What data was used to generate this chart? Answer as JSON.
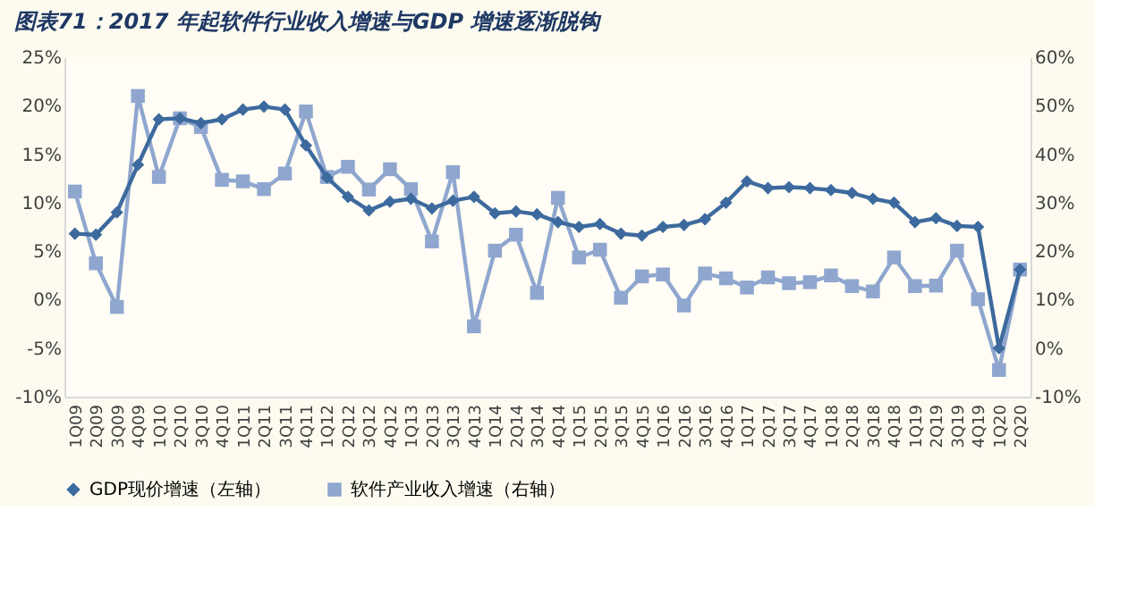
{
  "chart_data": {
    "type": "line",
    "title": "图表71：2017 年起软件行业收入增速与GDP 增速逐渐脱钩",
    "categories": [
      "1Q09",
      "2Q09",
      "3Q09",
      "4Q09",
      "1Q10",
      "2Q10",
      "3Q10",
      "4Q10",
      "1Q11",
      "2Q11",
      "3Q11",
      "4Q11",
      "1Q12",
      "2Q12",
      "3Q12",
      "4Q12",
      "1Q13",
      "2Q13",
      "3Q13",
      "4Q13",
      "1Q14",
      "2Q14",
      "3Q14",
      "4Q14",
      "1Q15",
      "2Q15",
      "3Q15",
      "4Q15",
      "1Q16",
      "2Q16",
      "3Q16",
      "4Q16",
      "1Q17",
      "2Q17",
      "3Q17",
      "4Q17",
      "1Q18",
      "2Q18",
      "3Q18",
      "4Q18",
      "1Q19",
      "2Q19",
      "3Q19",
      "4Q19",
      "1Q20",
      "2Q20"
    ],
    "series": [
      {
        "name": "GDP现价增速（左轴）",
        "color": "#3d6a9e",
        "marker": "diamond",
        "values": [
          6.8,
          6.7,
          9.0,
          13.9,
          18.6,
          18.7,
          18.2,
          18.6,
          19.6,
          19.9,
          19.6,
          15.9,
          12.6,
          10.6,
          9.2,
          10.1,
          10.4,
          9.4,
          10.2,
          10.6,
          8.9,
          9.1,
          8.8,
          8.0,
          7.5,
          7.8,
          6.8,
          6.6,
          7.5,
          7.7,
          8.3,
          10.0,
          12.2,
          11.5,
          11.6,
          11.5,
          11.3,
          11.0,
          10.4,
          10.0,
          8.0,
          8.4,
          7.6,
          7.5,
          -5.0,
          3.1
        ]
      },
      {
        "name": "软件产业收入增速（右轴）",
        "color": "#8fa6cf",
        "marker": "square",
        "axis": "y2",
        "values": [
          32.3,
          17.5,
          8.5,
          52.0,
          35.3,
          47.4,
          45.6,
          34.7,
          34.4,
          32.8,
          36.0,
          48.8,
          35.3,
          37.4,
          32.7,
          36.9,
          32.8,
          22.0,
          36.3,
          4.5,
          20.1,
          23.4,
          11.4,
          31.0,
          18.7,
          20.3,
          10.4,
          14.8,
          15.2,
          8.8,
          15.4,
          14.4,
          12.5,
          14.6,
          13.4,
          13.6,
          15.0,
          12.8,
          11.7,
          18.7,
          12.8,
          12.9,
          20.1,
          10.1,
          -4.5,
          16.2
        ]
      }
    ],
    "ylim": [
      -10,
      25
    ],
    "yticks": [
      {
        "value": -10,
        "label": "-10%"
      },
      {
        "value": -5,
        "label": "-5%"
      },
      {
        "value": 0,
        "label": "0%"
      },
      {
        "value": 5,
        "label": "5%"
      },
      {
        "value": 10,
        "label": "10%"
      },
      {
        "value": 15,
        "label": "15%"
      },
      {
        "value": 20,
        "label": "20%"
      },
      {
        "value": 25,
        "label": "25%"
      }
    ],
    "y2lim": [
      -10,
      60
    ],
    "y2ticks": [
      {
        "value": -10,
        "label": "-10%"
      },
      {
        "value": 0,
        "label": "0%"
      },
      {
        "value": 10,
        "label": "10%"
      },
      {
        "value": 20,
        "label": "20%"
      },
      {
        "value": 30,
        "label": "30%"
      },
      {
        "value": 40,
        "label": "40%"
      },
      {
        "value": 50,
        "label": "50%"
      },
      {
        "value": 60,
        "label": "60%"
      }
    ],
    "grid": false,
    "legend": "bottom",
    "line_style": "solid"
  }
}
